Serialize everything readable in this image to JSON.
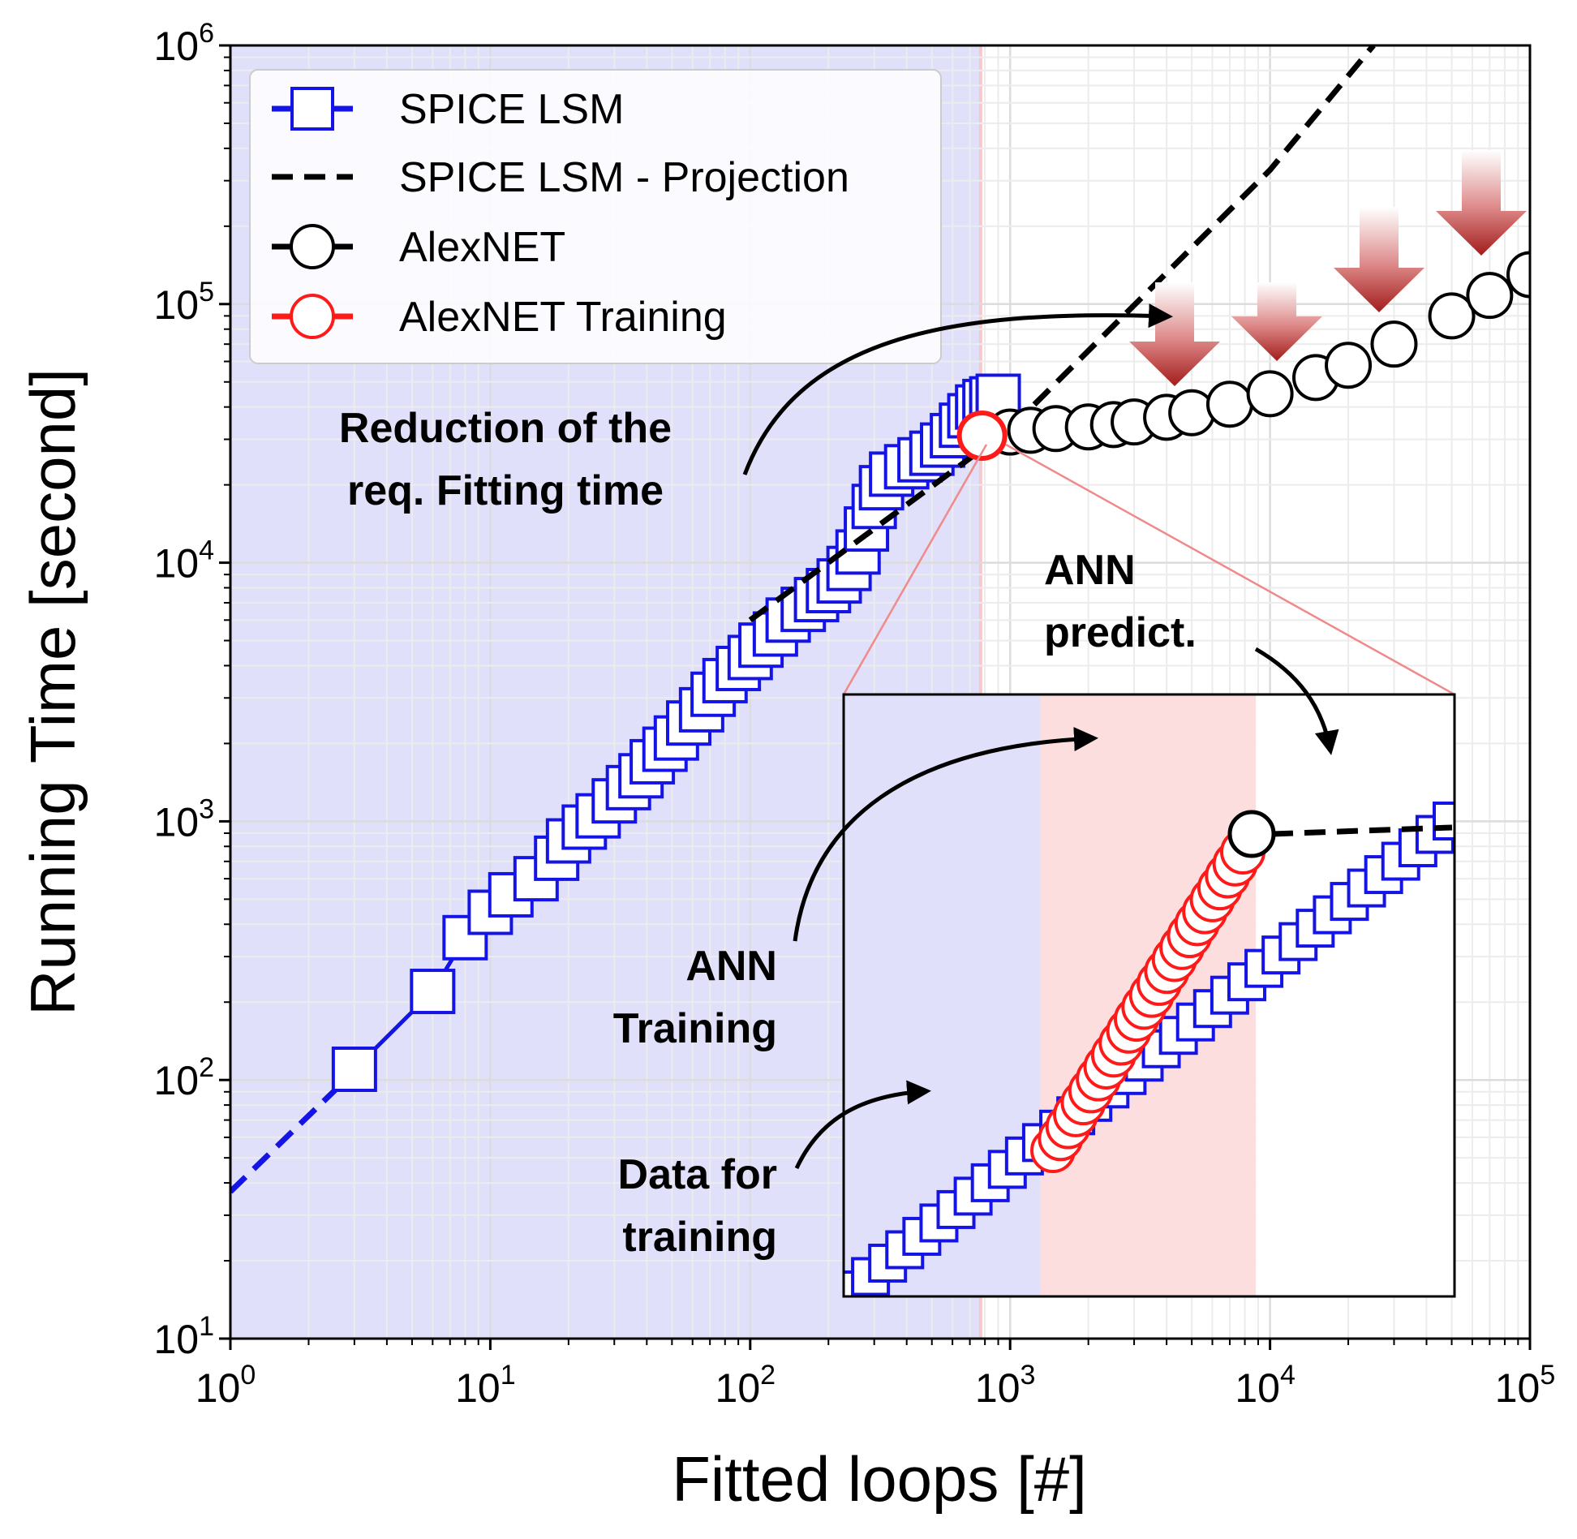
{
  "chart_data": {
    "type": "scatter",
    "xscale": "log",
    "yscale": "log",
    "xlim": [
      1,
      100000
    ],
    "ylim": [
      10,
      1000000
    ],
    "xlabel": "Fitted loops [#]",
    "ylabel": "Running Time [second]",
    "x_ticks": [
      {
        "value": 1,
        "base": "10",
        "exp": "0"
      },
      {
        "value": 10,
        "base": "10",
        "exp": "1"
      },
      {
        "value": 100,
        "base": "10",
        "exp": "2"
      },
      {
        "value": 1000,
        "base": "10",
        "exp": "3"
      },
      {
        "value": 10000,
        "base": "10",
        "exp": "4"
      },
      {
        "value": 100000,
        "base": "10",
        "exp": "5"
      }
    ],
    "y_ticks": [
      {
        "value": 10,
        "base": "10",
        "exp": "1"
      },
      {
        "value": 100,
        "base": "10",
        "exp": "2"
      },
      {
        "value": 1000,
        "base": "10",
        "exp": "3"
      },
      {
        "value": 10000,
        "base": "10",
        "exp": "4"
      },
      {
        "value": 100000,
        "base": "10",
        "exp": "5"
      },
      {
        "value": 1000000,
        "base": "10",
        "exp": "6"
      }
    ],
    "shaded_regions": [
      {
        "name": "spice-region",
        "x_range": [
          1,
          770
        ],
        "color": "#e0e0fb"
      }
    ],
    "legend": {
      "placement": "upper-left",
      "entries": [
        {
          "label": "SPICE LSM",
          "marker": "square",
          "color": "#1414e6",
          "line": "solid"
        },
        {
          "label": "SPICE LSM - Projection",
          "marker": "none",
          "color": "#000000",
          "line": "dashed"
        },
        {
          "label": "AlexNET",
          "marker": "circle",
          "color": "#000000",
          "line": "solid"
        },
        {
          "label": "AlexNET Training",
          "marker": "circle",
          "color": "#ff1a1a",
          "line": "solid"
        }
      ]
    },
    "series": [
      {
        "name": "SPICE LSM (extrapolated segment)",
        "style": "dashed",
        "color": "#1414e6",
        "points": [
          [
            1,
            37
          ],
          [
            3,
            108
          ]
        ]
      },
      {
        "name": "SPICE LSM",
        "marker": "square",
        "color": "#1414e6",
        "points": [
          [
            3,
            110
          ],
          [
            6,
            220
          ],
          [
            8,
            355
          ],
          [
            10,
            445
          ],
          [
            12,
            520
          ],
          [
            15,
            600
          ],
          [
            18,
            720
          ],
          [
            20,
            840
          ],
          [
            23,
            950
          ],
          [
            26,
            1050
          ],
          [
            30,
            1200
          ],
          [
            34,
            1350
          ],
          [
            38,
            1500
          ],
          [
            42,
            1700
          ],
          [
            47,
            1900
          ],
          [
            52,
            2100
          ],
          [
            58,
            2400
          ],
          [
            65,
            2700
          ],
          [
            72,
            3100
          ],
          [
            80,
            3500
          ],
          [
            90,
            3900
          ],
          [
            100,
            4300
          ],
          [
            110,
            4800
          ],
          [
            125,
            5300
          ],
          [
            140,
            6000
          ],
          [
            160,
            6600
          ],
          [
            180,
            7200
          ],
          [
            200,
            7800
          ],
          [
            220,
            8500
          ],
          [
            240,
            9500
          ],
          [
            260,
            11000
          ],
          [
            280,
            13500
          ],
          [
            300,
            16500
          ],
          [
            320,
            19500
          ],
          [
            350,
            22000
          ],
          [
            400,
            23500
          ],
          [
            450,
            25000
          ],
          [
            500,
            26500
          ],
          [
            550,
            28500
          ],
          [
            600,
            31000
          ],
          [
            650,
            34000
          ],
          [
            700,
            37000
          ],
          [
            750,
            40000
          ],
          [
            800,
            42000
          ],
          [
            850,
            43000
          ],
          [
            900,
            44000
          ]
        ]
      },
      {
        "name": "SPICE LSM - Projection",
        "style": "dashed",
        "color": "#000000",
        "points": [
          [
            100,
            6000
          ],
          [
            1000,
            33000
          ],
          [
            10000,
            330000
          ],
          [
            25000,
            1000000
          ]
        ]
      },
      {
        "name": "AlexNET",
        "marker": "circle",
        "color": "#000000",
        "points": [
          [
            1000,
            32000
          ],
          [
            1200,
            32500
          ],
          [
            1500,
            33000
          ],
          [
            2000,
            33500
          ],
          [
            2500,
            34200
          ],
          [
            3000,
            35000
          ],
          [
            4000,
            36500
          ],
          [
            5000,
            38000
          ],
          [
            7000,
            41000
          ],
          [
            10000,
            45000
          ],
          [
            15000,
            52000
          ],
          [
            20000,
            58000
          ],
          [
            30000,
            70000
          ],
          [
            50000,
            90000
          ],
          [
            70000,
            108000
          ],
          [
            100000,
            130000
          ]
        ]
      },
      {
        "name": "AlexNET Training",
        "marker": "circle",
        "color": "#ff1a1a",
        "points": [
          [
            780,
            31000
          ]
        ]
      }
    ],
    "annotations": [
      {
        "text_lines": [
          "Reduction of the",
          "req. Fitting time"
        ]
      },
      {
        "text_lines": [
          "ANN",
          "predict."
        ]
      },
      {
        "text_lines": [
          "ANN",
          "Training"
        ]
      },
      {
        "text_lines": [
          "Data for",
          "training"
        ]
      }
    ],
    "inset": {
      "description_free": true,
      "regions": [
        {
          "name": "data-for-training",
          "color": "#e0e0fb",
          "range": [
            0,
            0.322
          ]
        },
        {
          "name": "ann-training",
          "color": "#fcdede",
          "range": [
            0.322,
            0.675
          ]
        },
        {
          "name": "ann-predict",
          "color": "#ffffff",
          "range": [
            0.675,
            1.0
          ]
        }
      ],
      "blue_squares_count": 36,
      "red_circles_count": 26
    }
  },
  "annotations_text": {
    "reduction_line1": "Reduction of the",
    "reduction_line2": "req. Fitting time",
    "ann_predict_line1": "ANN",
    "ann_predict_line2": "predict.",
    "ann_training_line1": "ANN",
    "ann_training_line2": "Training",
    "data_training_line1": "Data for",
    "data_training_line2": "training"
  }
}
